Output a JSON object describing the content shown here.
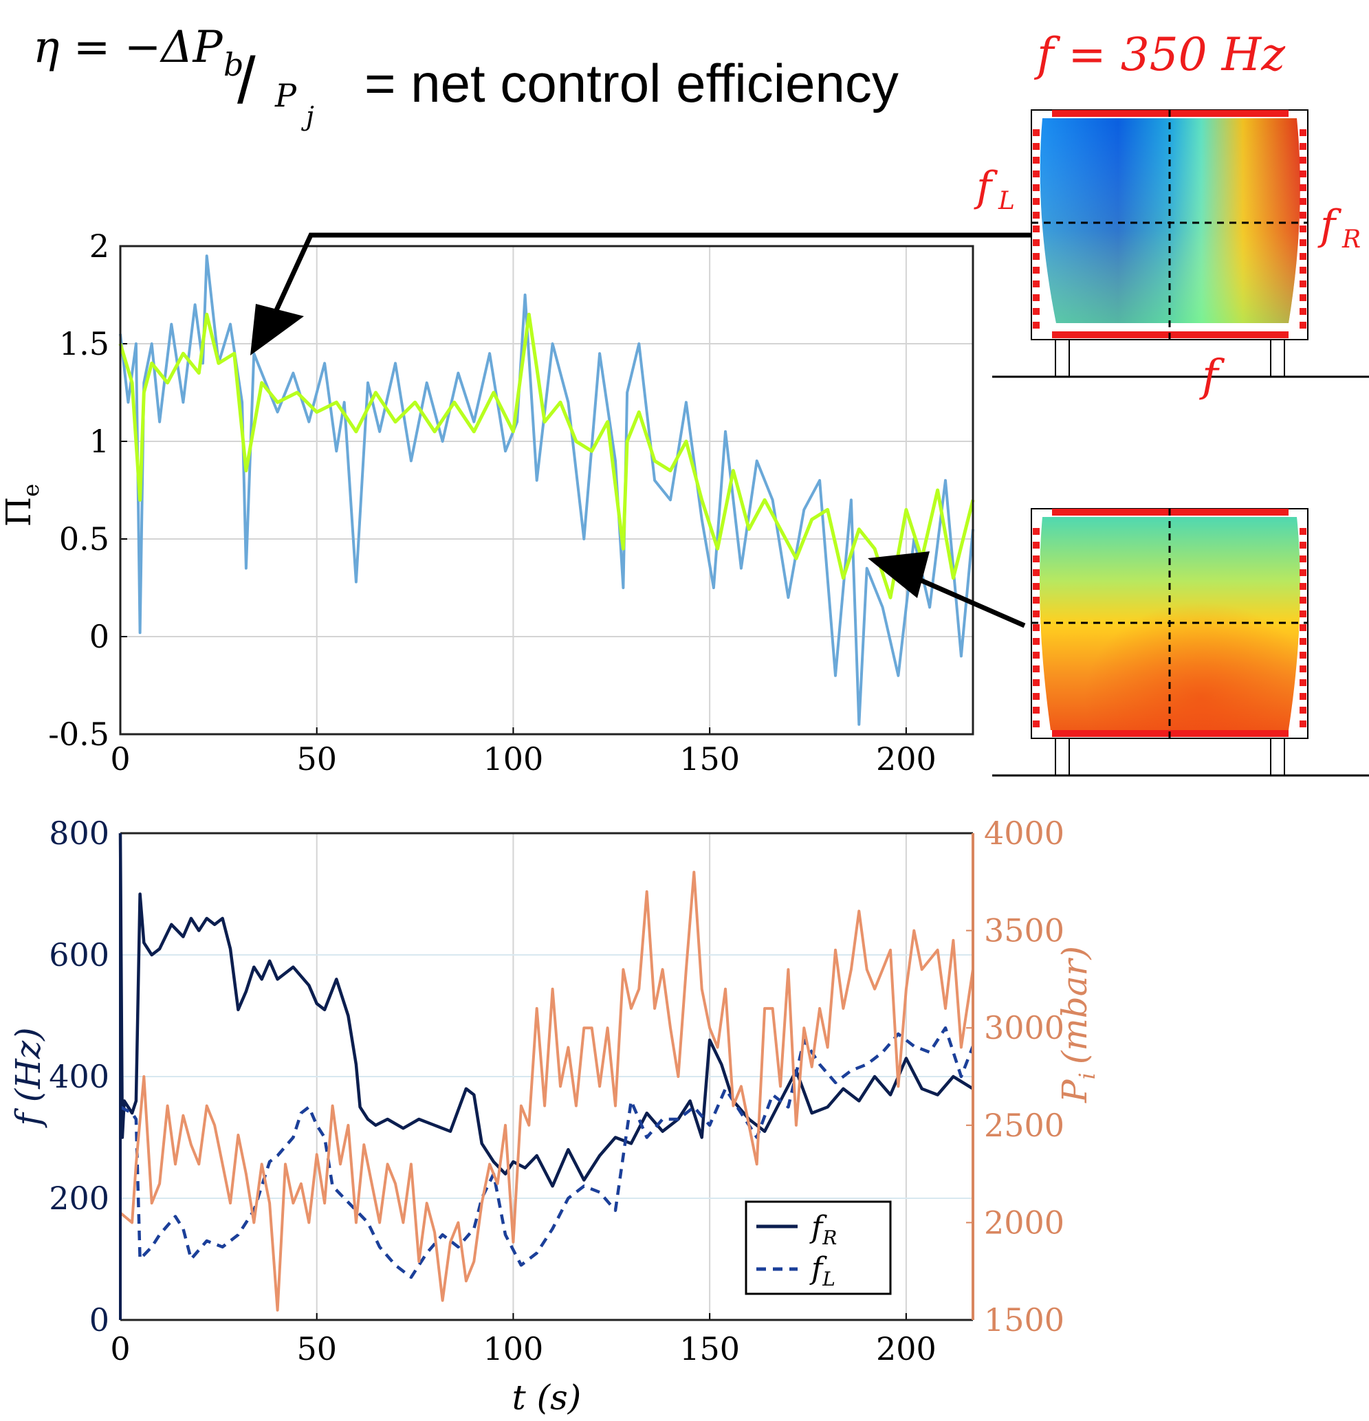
{
  "header": {
    "eq_eta": "η = −ΔP",
    "eq_b": "b",
    "eq_slash": "/",
    "eq_P": "P",
    "eq_j": "j",
    "eq_rest": "= net control efficiency",
    "freq": "f = 350 Hz"
  },
  "diagram": {
    "fL": "f",
    "fL_sub": "L",
    "fR": "f",
    "fR_sub": "R",
    "f": "f"
  },
  "colors": {
    "raw": "#6aa8d8",
    "smooth": "#b8ff1e",
    "fR": "#0b1e4f",
    "fL": "#1b3f99",
    "pressure": "#e8926a",
    "red": "#ee1c1c",
    "right_axis": "#d9865f"
  },
  "chart_data": [
    {
      "type": "line",
      "ylabel": "Π",
      "ylabel_sub": "e",
      "xlim": [
        0,
        217
      ],
      "ylim": [
        -0.5,
        2
      ],
      "xticks": [
        "0",
        "50",
        "100",
        "150",
        "200"
      ],
      "yticks": [
        "-0.5",
        "0",
        "0.5",
        "1",
        "1.5",
        "2"
      ],
      "grid": true,
      "series": [
        {
          "role": "raw",
          "x": [
            0,
            2,
            4,
            5,
            6,
            8,
            10,
            13,
            16,
            19,
            21,
            22,
            25,
            28,
            31,
            32,
            34,
            37,
            40,
            44,
            48,
            52,
            55,
            57,
            60,
            63,
            66,
            70,
            74,
            78,
            82,
            86,
            90,
            94,
            98,
            101,
            103,
            106,
            110,
            114,
            118,
            122,
            126,
            128,
            129,
            132,
            136,
            140,
            144,
            148,
            151,
            154,
            158,
            162,
            166,
            170,
            174,
            178,
            182,
            186,
            188,
            190,
            194,
            198,
            202,
            206,
            210,
            214,
            217
          ],
          "values": [
            1.55,
            1.2,
            1.5,
            0.02,
            1.3,
            1.5,
            1.1,
            1.6,
            1.2,
            1.7,
            1.4,
            1.95,
            1.4,
            1.6,
            1.2,
            0.35,
            1.45,
            1.3,
            1.15,
            1.35,
            1.1,
            1.4,
            0.95,
            1.2,
            0.28,
            1.3,
            1.05,
            1.4,
            0.9,
            1.3,
            1.0,
            1.35,
            1.1,
            1.45,
            0.95,
            1.1,
            1.75,
            0.8,
            1.5,
            1.2,
            0.5,
            1.45,
            0.9,
            0.25,
            1.25,
            1.5,
            0.8,
            0.7,
            1.2,
            0.6,
            0.25,
            1.05,
            0.35,
            0.9,
            0.7,
            0.2,
            0.65,
            0.8,
            -0.2,
            0.7,
            -0.45,
            0.35,
            0.15,
            -0.2,
            0.5,
            0.15,
            0.8,
            -0.1,
            0.55
          ]
        },
        {
          "role": "smooth",
          "x": [
            0,
            3,
            5,
            6,
            8,
            12,
            16,
            20,
            22,
            25,
            29,
            32,
            36,
            40,
            45,
            50,
            55,
            60,
            65,
            70,
            75,
            80,
            85,
            90,
            95,
            100,
            104,
            108,
            112,
            116,
            120,
            124,
            128,
            129,
            132,
            136,
            140,
            144,
            148,
            152,
            156,
            160,
            164,
            168,
            172,
            176,
            180,
            184,
            188,
            192,
            196,
            200,
            204,
            208,
            212,
            217
          ],
          "values": [
            1.5,
            1.3,
            0.7,
            1.25,
            1.4,
            1.3,
            1.45,
            1.35,
            1.65,
            1.4,
            1.45,
            0.85,
            1.3,
            1.2,
            1.25,
            1.15,
            1.2,
            1.05,
            1.25,
            1.1,
            1.2,
            1.05,
            1.2,
            1.05,
            1.25,
            1.05,
            1.65,
            1.1,
            1.2,
            1.0,
            0.95,
            1.1,
            0.45,
            1.0,
            1.15,
            0.9,
            0.85,
            1.0,
            0.7,
            0.45,
            0.85,
            0.55,
            0.7,
            0.55,
            0.4,
            0.6,
            0.65,
            0.3,
            0.55,
            0.45,
            0.2,
            0.65,
            0.4,
            0.75,
            0.3,
            0.7
          ]
        }
      ]
    },
    {
      "type": "line",
      "xlabel": "t (s)",
      "ylabel": "f (Hz)",
      "ylabel_right": "P",
      "ylabel_right_sub": "i",
      "ylabel_right_unit": "(mbar)",
      "xlim": [
        0,
        217
      ],
      "ylim": [
        0,
        800
      ],
      "ylim_right": [
        1500,
        4000
      ],
      "xticks": [
        "0",
        "50",
        "100",
        "150",
        "200"
      ],
      "yticks": [
        "0",
        "200",
        "400",
        "600",
        "800"
      ],
      "yticks_right": [
        "1500",
        "2000",
        "2500",
        "3000",
        "3500",
        "4000"
      ],
      "grid": true,
      "legend": {
        "position": "bottom-right",
        "fR": "f",
        "fR_sub": "R",
        "fL": "f",
        "fL_sub": "L"
      },
      "series": [
        {
          "name": "fR",
          "x": [
            0,
            0.5,
            1,
            3,
            4,
            5,
            6,
            8,
            10,
            13,
            16,
            18,
            20,
            22,
            24,
            26,
            28,
            30,
            32,
            34,
            36,
            38,
            40,
            44,
            48,
            50,
            52,
            55,
            58,
            60,
            61,
            63,
            65,
            68,
            72,
            76,
            80,
            84,
            88,
            90,
            92,
            95,
            98,
            100,
            103,
            106,
            110,
            114,
            118,
            122,
            126,
            130,
            134,
            138,
            142,
            145,
            148,
            150,
            153,
            156,
            160,
            164,
            168,
            172,
            176,
            180,
            184,
            188,
            192,
            196,
            200,
            204,
            208,
            212,
            217
          ],
          "values": [
            800,
            300,
            360,
            340,
            360,
            700,
            620,
            600,
            610,
            650,
            630,
            660,
            640,
            660,
            650,
            660,
            610,
            510,
            540,
            580,
            560,
            590,
            560,
            580,
            550,
            520,
            510,
            560,
            500,
            420,
            350,
            330,
            320,
            330,
            315,
            330,
            320,
            310,
            380,
            370,
            290,
            260,
            240,
            260,
            250,
            270,
            220,
            280,
            230,
            270,
            300,
            290,
            340,
            310,
            330,
            360,
            300,
            460,
            420,
            360,
            330,
            310,
            360,
            410,
            340,
            350,
            380,
            360,
            400,
            370,
            430,
            380,
            370,
            400,
            380
          ]
        },
        {
          "name": "fL",
          "x": [
            0,
            3,
            4,
            5,
            8,
            10,
            14,
            16,
            18,
            22,
            26,
            30,
            34,
            38,
            40,
            44,
            46,
            48,
            50,
            52,
            54,
            57,
            60,
            63,
            66,
            70,
            74,
            78,
            82,
            86,
            90,
            92,
            95,
            98,
            102,
            106,
            110,
            114,
            118,
            122,
            126,
            130,
            134,
            138,
            142,
            146,
            150,
            154,
            158,
            162,
            166,
            170,
            174,
            178,
            182,
            186,
            190,
            194,
            198,
            202,
            206,
            210,
            214,
            217
          ],
          "values": [
            350,
            340,
            330,
            100,
            120,
            140,
            170,
            150,
            100,
            130,
            120,
            140,
            180,
            260,
            270,
            300,
            340,
            350,
            320,
            300,
            220,
            200,
            180,
            160,
            120,
            90,
            70,
            110,
            140,
            120,
            150,
            200,
            240,
            140,
            90,
            110,
            150,
            200,
            220,
            210,
            180,
            360,
            300,
            330,
            330,
            350,
            320,
            380,
            340,
            300,
            370,
            350,
            460,
            420,
            390,
            410,
            420,
            440,
            470,
            450,
            440,
            480,
            400,
            450
          ]
        },
        {
          "name": "Pi",
          "axis": "right",
          "x": [
            0,
            3,
            4,
            6,
            8,
            10,
            12,
            14,
            16,
            18,
            20,
            22,
            24,
            26,
            28,
            30,
            32,
            34,
            36,
            38,
            40,
            42,
            44,
            46,
            48,
            50,
            52,
            54,
            56,
            58,
            60,
            62,
            64,
            66,
            68,
            70,
            72,
            74,
            76,
            78,
            80,
            82,
            84,
            86,
            88,
            90,
            92,
            94,
            96,
            98,
            100,
            102,
            104,
            106,
            108,
            110,
            112,
            114,
            116,
            118,
            120,
            122,
            124,
            126,
            128,
            130,
            132,
            134,
            136,
            138,
            140,
            142,
            144,
            146,
            148,
            150,
            152,
            154,
            156,
            158,
            160,
            162,
            164,
            166,
            168,
            170,
            172,
            174,
            176,
            178,
            180,
            182,
            184,
            186,
            188,
            190,
            192,
            194,
            196,
            198,
            200,
            202,
            204,
            206,
            208,
            210,
            212,
            214,
            217
          ],
          "values": [
            2050,
            2000,
            2300,
            2750,
            2100,
            2200,
            2600,
            2300,
            2550,
            2400,
            2300,
            2600,
            2500,
            2300,
            2100,
            2450,
            2250,
            2000,
            2300,
            2100,
            1550,
            2300,
            2100,
            2200,
            2000,
            2350,
            2100,
            2600,
            2300,
            2500,
            2000,
            2400,
            2200,
            2000,
            2300,
            2200,
            2000,
            2300,
            1800,
            2100,
            1950,
            1600,
            1900,
            2000,
            1700,
            1800,
            2100,
            2300,
            2200,
            2500,
            1900,
            2600,
            2500,
            3100,
            2600,
            3200,
            2700,
            2900,
            2600,
            3000,
            3000,
            2700,
            3000,
            2600,
            3300,
            3100,
            3200,
            3700,
            3100,
            3300,
            3000,
            2750,
            3300,
            3800,
            3200,
            3000,
            2900,
            3200,
            2600,
            2700,
            2500,
            2300,
            3100,
            3100,
            2700,
            3300,
            2500,
            3000,
            2800,
            3100,
            2900,
            3400,
            3100,
            3300,
            3600,
            3300,
            3200,
            3300,
            3400,
            2700,
            3200,
            3500,
            3300,
            3350,
            3400,
            3100,
            3450,
            2900,
            3300
          ]
        }
      ]
    }
  ]
}
